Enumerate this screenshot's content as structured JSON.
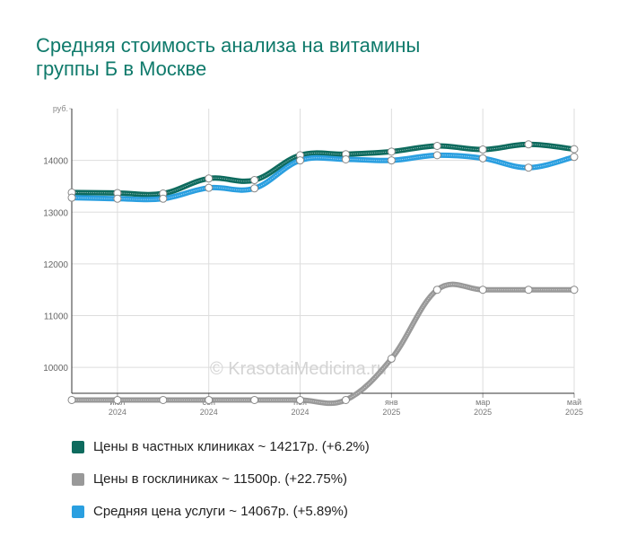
{
  "title_lines": [
    "Средняя стоимость анализа на витамины",
    "группы Б в Москве"
  ],
  "watermark": "© KrasotaiMedicina.ru",
  "chart_data": {
    "type": "line",
    "ylabel": "руб.",
    "ylim": [
      9500,
      15000
    ],
    "yticks": [
      10000,
      11000,
      12000,
      13000,
      14000
    ],
    "xlim": [
      0,
      11
    ],
    "x": [
      0,
      1,
      2,
      3,
      4,
      5,
      6,
      7,
      8,
      9,
      10,
      11
    ],
    "xticks": [
      {
        "pos": 1,
        "month": "июл",
        "year": "2024"
      },
      {
        "pos": 3,
        "month": "сен",
        "year": "2024"
      },
      {
        "pos": 5,
        "month": "ноя",
        "year": "2024"
      },
      {
        "pos": 7,
        "month": "янв",
        "year": "2025"
      },
      {
        "pos": 9,
        "month": "мар",
        "year": "2025"
      },
      {
        "pos": 11,
        "month": "май",
        "year": "2025"
      }
    ],
    "series": [
      {
        "name": "Цены в госклиниках",
        "color": "#999999",
        "label": "Цены в госклиниках ~ 11500р. (+22.75%)",
        "values": [
          9370,
          9370,
          9370,
          9370,
          9370,
          9370,
          9370,
          10170,
          11500,
          11500,
          11500,
          11500
        ]
      },
      {
        "name": "Цены в частных клиниках",
        "color": "#0e6b5e",
        "label": "Цены в частных клиниках ~ 14217р. (+6.2%)",
        "values": [
          13380,
          13370,
          13360,
          13650,
          13620,
          14100,
          14120,
          14170,
          14280,
          14210,
          14310,
          14217
        ]
      },
      {
        "name": "Средняя цена услуги",
        "color": "#2a9fe0",
        "label": "Средняя цена услуги ~ 14067р. (+5.89%)",
        "values": [
          13280,
          13260,
          13260,
          13470,
          13460,
          14000,
          14020,
          14000,
          14100,
          14040,
          13860,
          14067
        ]
      }
    ]
  },
  "legend": [
    {
      "label": "Цены в частных клиниках ~ 14217р. (+6.2%)",
      "color": "#0e6b5e"
    },
    {
      "label": "Цены в госклиниках ~ 11500р. (+22.75%)",
      "color": "#999999"
    },
    {
      "label": "Средняя цена услуги ~ 14067р. (+5.89%)",
      "color": "#2a9fe0"
    }
  ]
}
